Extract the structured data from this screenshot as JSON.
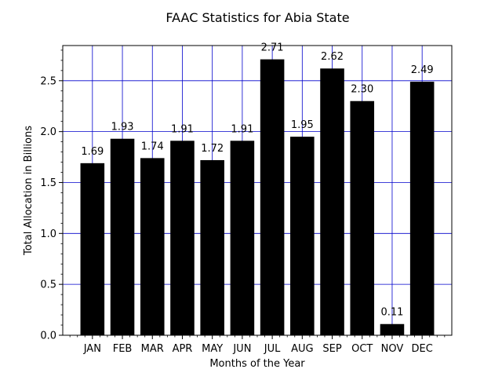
{
  "chart_data": {
    "type": "bar",
    "title": "FAAC Statistics for Abia State",
    "xlabel": "Months of the Year",
    "ylabel": "Total Allocation in Billions",
    "categories": [
      "JAN",
      "FEB",
      "MAR",
      "APR",
      "MAY",
      "JUN",
      "JUL",
      "AUG",
      "SEP",
      "OCT",
      "NOV",
      "DEC"
    ],
    "values": [
      1.69,
      1.93,
      1.74,
      1.91,
      1.72,
      1.91,
      2.71,
      1.95,
      2.62,
      2.3,
      0.11,
      2.49
    ],
    "value_labels": [
      "1.69",
      "1.93",
      "1.74",
      "1.91",
      "1.72",
      "1.91",
      "2.71",
      "1.95",
      "2.62",
      "2.30",
      "0.11",
      "2.49"
    ],
    "y_ticks": [
      0.0,
      0.5,
      1.0,
      1.5,
      2.0,
      2.5
    ],
    "y_tick_labels": [
      "0.0",
      "0.5",
      "1.0",
      "1.5",
      "2.0",
      "2.5"
    ],
    "ylim": [
      0,
      2.8455
    ],
    "grid": true,
    "bar_color": "#000000",
    "grid_color": "#0000cc"
  }
}
